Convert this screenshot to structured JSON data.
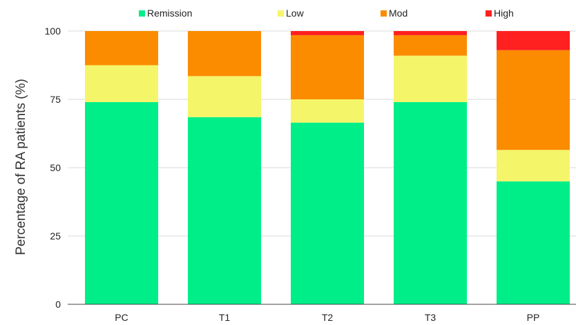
{
  "chart_data": {
    "type": "bar",
    "stacked": true,
    "categories": [
      "PC",
      "T1",
      "T2",
      "T3",
      "PP"
    ],
    "series": [
      {
        "name": "Remission",
        "color": "#00ee88",
        "values": [
          74,
          68.5,
          66.5,
          74,
          45
        ]
      },
      {
        "name": "Low",
        "color": "#f5f56a",
        "values": [
          13.5,
          15,
          8.5,
          17,
          11.5
        ]
      },
      {
        "name": "Mod",
        "color": "#fb8c00",
        "values": [
          12.5,
          16.5,
          23.5,
          7.5,
          36.5
        ]
      },
      {
        "name": "High",
        "color": "#ff2020",
        "values": [
          0,
          0,
          1.5,
          1.5,
          7
        ]
      }
    ],
    "title": "",
    "xlabel": "",
    "ylabel": "Percentage of RA patients (%)",
    "ylim": [
      0,
      100
    ],
    "yticks": [
      "0",
      "25",
      "50",
      "75",
      "100"
    ],
    "grid": true,
    "legend_position": "top"
  }
}
